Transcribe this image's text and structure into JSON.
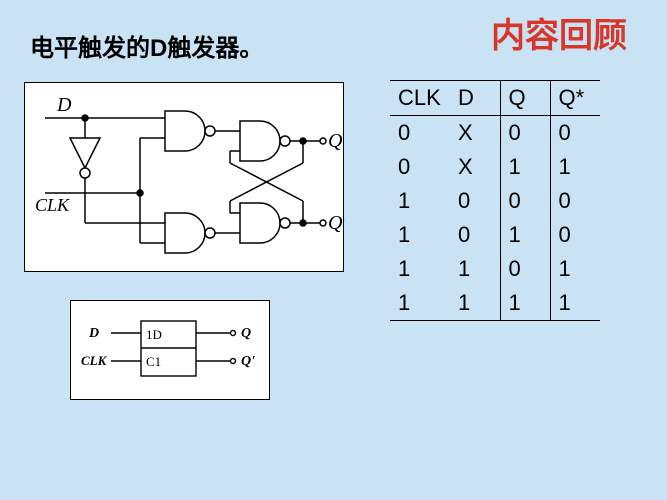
{
  "title_main": "电平触发的D触发器。",
  "title_corner": "内容回顾",
  "colors": {
    "background": "#c9e3f5",
    "diagram_bg": "#ffffff",
    "stroke": "#000000",
    "title_color": "#000000",
    "corner_color": "#d9362a",
    "table_border": "#000000"
  },
  "circuit": {
    "labels": {
      "D": "D",
      "CLK": "CLK",
      "Q": "Q",
      "Qp": "Q'"
    },
    "stroke_width": 1.5,
    "inverter_fill": "#ffffff",
    "gate_fill": "#ffffff"
  },
  "symbol": {
    "labels": {
      "D": "D",
      "CLK": "CLK",
      "Q": "Q",
      "Qp": "Q'",
      "pin_1D": "1D",
      "pin_C1": "C1"
    },
    "stroke_width": 1.4
  },
  "truth_table": {
    "columns": [
      "CLK",
      "D",
      "Q",
      "Q*"
    ],
    "rows": [
      [
        "0",
        "X",
        "0",
        "0"
      ],
      [
        "0",
        "X",
        "1",
        "1"
      ],
      [
        "1",
        "0",
        "0",
        "0"
      ],
      [
        "1",
        "0",
        "1",
        "0"
      ],
      [
        "1",
        "1",
        "0",
        "1"
      ],
      [
        "1",
        "1",
        "1",
        "1"
      ]
    ],
    "font_size": 22,
    "col_widths": {
      "CLK": 60,
      "D": 50,
      "Q": 50,
      "Qstar": 50
    }
  }
}
